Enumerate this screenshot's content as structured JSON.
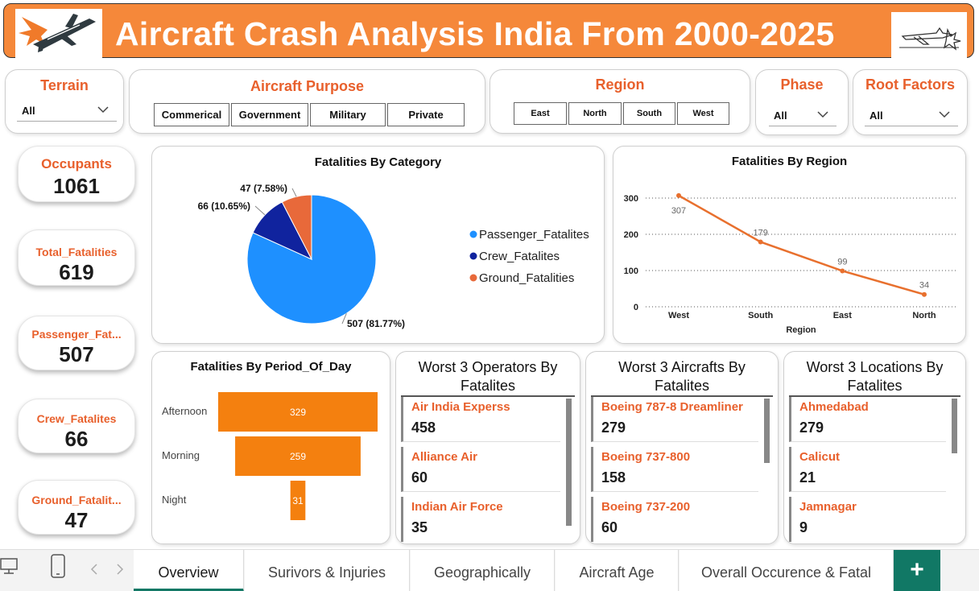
{
  "title": "Aircraft Crash Analysis India From 2000-2025",
  "colors": {
    "accent": "#f5883a",
    "orange_text": "#e8602c",
    "passenger": "#1e90ff",
    "crew": "#10239e",
    "ground": "#e8693a",
    "line": "#e8702e",
    "bar": "#f4800f",
    "tab_accent": "#117865"
  },
  "slicers": {
    "terrain": {
      "label": "Terrain",
      "value": "All"
    },
    "purpose": {
      "label": "Aircraft Purpose",
      "options": [
        "Commerical",
        "Government",
        "Military",
        "Private"
      ]
    },
    "region": {
      "label": "Region",
      "options": [
        "East",
        "North",
        "South",
        "West"
      ]
    },
    "phase": {
      "label": "Phase",
      "value": "All"
    },
    "root": {
      "label": "Root Factors",
      "value": "All"
    }
  },
  "kpis": [
    {
      "label": "Occupants",
      "value": "1061"
    },
    {
      "label": "Total_Fatalities",
      "value": "619"
    },
    {
      "label": "Passenger_Fat...",
      "value": "507"
    },
    {
      "label": "Crew_Fatalites",
      "value": "66"
    },
    {
      "label": "Ground_Fatalit...",
      "value": "47"
    }
  ],
  "visuals": {
    "pie_title": "Fatalities By Category",
    "line_title": "Fatalities By Region",
    "funnel_title": "Fatalities By Period_Of_Day",
    "operators_title_1": "Worst 3 Operators By",
    "operators_title_2": "Fatalites",
    "aircrafts_title_1": "Worst 3 Aircrafts By",
    "aircrafts_title_2": "Fatalites",
    "locations_title_1": "Worst 3 Locations By",
    "locations_title_2": "Fatalites"
  },
  "worst_operators": [
    {
      "name": "Air India Experss",
      "value": "458"
    },
    {
      "name": "Alliance Air",
      "value": "60"
    },
    {
      "name": "Indian Air Force",
      "value": "35"
    }
  ],
  "worst_aircrafts": [
    {
      "name": "Boeing 787-8 Dreamliner",
      "value": "279"
    },
    {
      "name": "Boeing 737-800",
      "value": "158"
    },
    {
      "name": "Boeing 737-200",
      "value": "60"
    }
  ],
  "worst_locations": [
    {
      "name": "Ahmedabad",
      "value": "279"
    },
    {
      "name": "Calicut",
      "value": "21"
    },
    {
      "name": "Jamnagar",
      "value": "9"
    }
  ],
  "chart_data": [
    {
      "type": "pie",
      "title": "Fatalities By Category",
      "categories": [
        "Passenger_Fatalites",
        "Crew_Fatalites",
        "Ground_Fatalities"
      ],
      "values": [
        507,
        66,
        47
      ],
      "data_labels": [
        "507 (81.77%)",
        "66 (10.65%)",
        "47 (7.58%)"
      ],
      "legend": "right"
    },
    {
      "type": "line",
      "title": "Fatalities By Region",
      "categories": [
        "West",
        "South",
        "East",
        "North"
      ],
      "values": [
        307,
        179,
        99,
        34
      ],
      "xlabel": "Region",
      "ylabel": "",
      "ylim": [
        0,
        300
      ],
      "yticks": [
        "0",
        "100",
        "200",
        "300"
      ],
      "grid": true
    },
    {
      "type": "bar",
      "title": "Fatalities By Period_Of_Day",
      "categories": [
        "Afternoon",
        "Morning",
        "Night"
      ],
      "values": [
        329,
        259,
        31
      ]
    }
  ],
  "tabs": [
    "Overview",
    "Surivors & Injuries",
    "Geographically",
    "Aircraft Age",
    "Overall Occurence & Fatal"
  ],
  "add_tab": "+",
  "icons": {
    "desktop": "desktop-icon",
    "phone": "phone-icon",
    "prev": "chevron-left-icon",
    "next": "chevron-right-icon"
  }
}
